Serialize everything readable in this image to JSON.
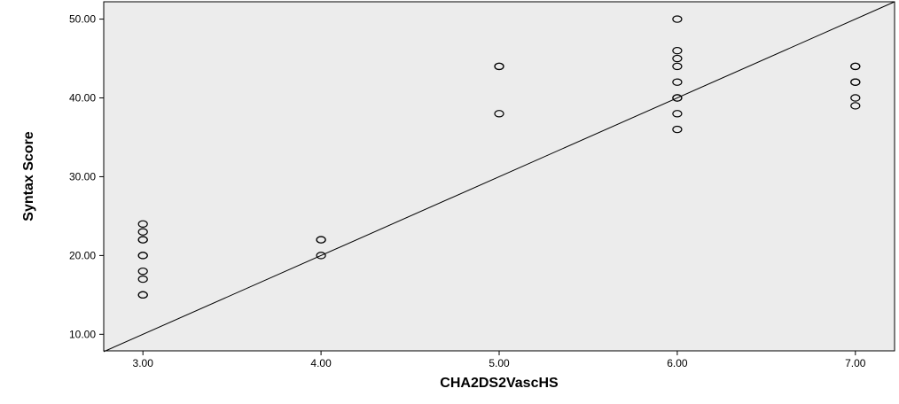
{
  "chart_data": {
    "type": "scatter",
    "title": "",
    "xlabel": "CHA2DS2VascHS",
    "ylabel": "Syntax Score",
    "xlim": [
      2.78,
      7.22
    ],
    "ylim": [
      7.9,
      52.2
    ],
    "x_ticks": [
      "3.00",
      "4.00",
      "5.00",
      "6.00",
      "7.00"
    ],
    "y_ticks": [
      "10.00",
      "20.00",
      "30.00",
      "40.00",
      "50.00"
    ],
    "grid": false,
    "legend": "none",
    "background_color": "#ececec",
    "marker_color": "#000000",
    "reference_line": {
      "x": [
        2.78,
        7.22
      ],
      "y": [
        7.8,
        52.2
      ]
    },
    "points": [
      {
        "x": 3,
        "y": 24
      },
      {
        "x": 3,
        "y": 23
      },
      {
        "x": 3,
        "y": 22
      },
      {
        "x": 3,
        "y": 22
      },
      {
        "x": 3,
        "y": 20
      },
      {
        "x": 3,
        "y": 20
      },
      {
        "x": 3,
        "y": 18
      },
      {
        "x": 3,
        "y": 17
      },
      {
        "x": 3,
        "y": 15
      },
      {
        "x": 3,
        "y": 15
      },
      {
        "x": 4,
        "y": 22
      },
      {
        "x": 4,
        "y": 22
      },
      {
        "x": 4,
        "y": 20
      },
      {
        "x": 5,
        "y": 44
      },
      {
        "x": 5,
        "y": 44
      },
      {
        "x": 5,
        "y": 38
      },
      {
        "x": 6,
        "y": 50
      },
      {
        "x": 6,
        "y": 46
      },
      {
        "x": 6,
        "y": 45
      },
      {
        "x": 6,
        "y": 44
      },
      {
        "x": 6,
        "y": 42
      },
      {
        "x": 6,
        "y": 40
      },
      {
        "x": 6,
        "y": 40
      },
      {
        "x": 6,
        "y": 38
      },
      {
        "x": 6,
        "y": 36
      },
      {
        "x": 7,
        "y": 44
      },
      {
        "x": 7,
        "y": 44
      },
      {
        "x": 7,
        "y": 42
      },
      {
        "x": 7,
        "y": 42
      },
      {
        "x": 7,
        "y": 40
      },
      {
        "x": 7,
        "y": 39
      }
    ]
  }
}
